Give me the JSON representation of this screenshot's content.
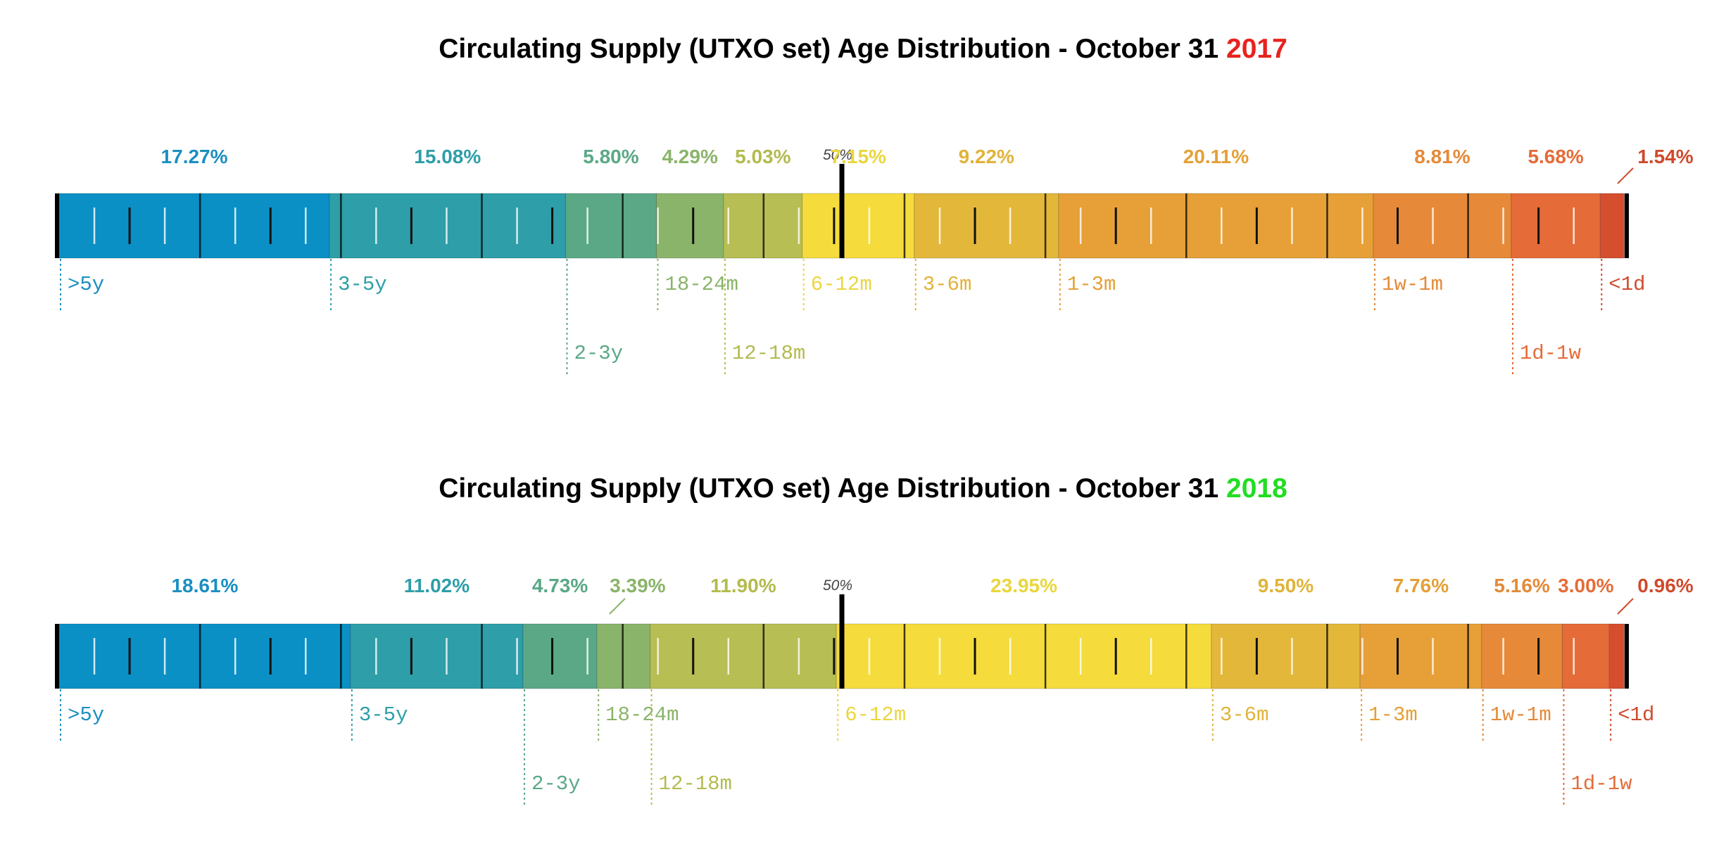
{
  "chart_data": [
    {
      "type": "bar",
      "orientation": "horizontal",
      "stacked": true,
      "title_prefix": "Circulating Supply (UTXO set) Age Distribution - October 31 ",
      "title_year": "2017",
      "year_color": "#e8231f",
      "median_label": "50%",
      "median_value": 50,
      "unit": "%",
      "xlim": [
        0,
        100
      ],
      "categories": [
        ">5y",
        "3-5y",
        "2-3y",
        "18-24m",
        "12-18m",
        "6-12m",
        "3-6m",
        "1-3m",
        "1w-1m",
        "1d-1w",
        "<1d"
      ],
      "values": [
        17.27,
        15.08,
        5.8,
        4.29,
        5.03,
        7.15,
        9.22,
        20.11,
        8.81,
        5.68,
        1.54
      ],
      "value_labels": [
        "17.27%",
        "15.08%",
        "5.80%",
        "4.29%",
        "5.03%",
        "7.15%",
        "9.22%",
        "20.11%",
        "8.81%",
        "5.68%",
        "1.54%"
      ],
      "colors": [
        "#0a90c4",
        "#2e9ea8",
        "#5aa886",
        "#8ab46a",
        "#b7be53",
        "#f5dc3c",
        "#e3b73a",
        "#e6a037",
        "#e68a39",
        "#e56b38",
        "#d54e2e"
      ],
      "label_colors": [
        "#1a8fc1",
        "#2e9ea8",
        "#5aa886",
        "#8ab46a",
        "#b3bb4f",
        "#ead63e",
        "#e0b33a",
        "#e4a037",
        "#e48a39",
        "#e56b38",
        "#cf4a2c"
      ]
    },
    {
      "type": "bar",
      "orientation": "horizontal",
      "stacked": true,
      "title_prefix": "Circulating Supply (UTXO set) Age Distribution - October 31 ",
      "title_year": "2018",
      "year_color": "#22dd22",
      "median_label": "50%",
      "median_value": 50,
      "unit": "%",
      "xlim": [
        0,
        100
      ],
      "categories": [
        ">5y",
        "3-5y",
        "2-3y",
        "18-24m",
        "12-18m",
        "6-12m",
        "3-6m",
        "1-3m",
        "1w-1m",
        "1d-1w",
        "<1d"
      ],
      "values": [
        18.61,
        11.02,
        4.73,
        3.39,
        11.9,
        23.95,
        9.5,
        7.76,
        5.16,
        3.0,
        0.96
      ],
      "value_labels": [
        "18.61%",
        "11.02%",
        "4.73%",
        "3.39%",
        "11.90%",
        "23.95%",
        "9.50%",
        "7.76%",
        "5.16%",
        "3.00%",
        "0.96%"
      ],
      "colors": [
        "#0a90c4",
        "#2e9ea8",
        "#5aa886",
        "#8ab46a",
        "#b7be53",
        "#f5dc3c",
        "#e3b73a",
        "#e6a037",
        "#e68a39",
        "#e56b38",
        "#d54e2e"
      ],
      "label_colors": [
        "#1a8fc1",
        "#2e9ea8",
        "#5aa886",
        "#8ab46a",
        "#b3bb4f",
        "#ead63e",
        "#e0b33a",
        "#e4a037",
        "#e48a39",
        "#e56b38",
        "#cf4a2c"
      ]
    }
  ]
}
